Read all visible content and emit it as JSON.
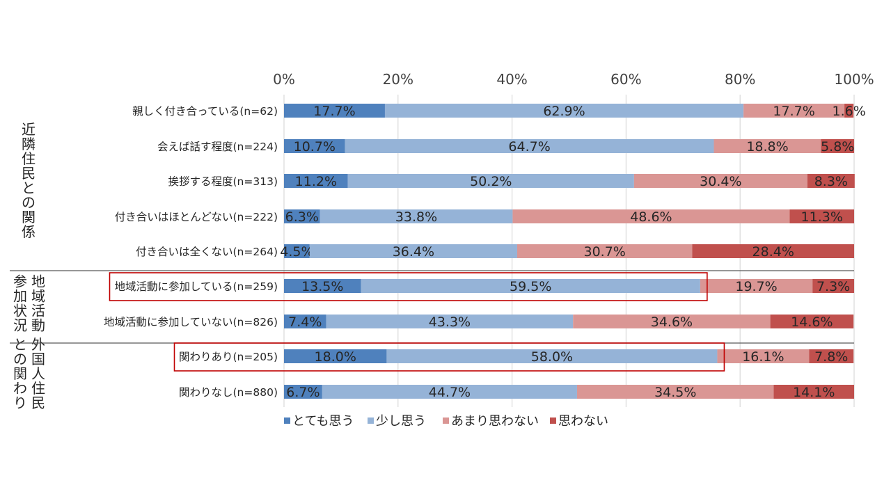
{
  "chart_data": {
    "type": "bar",
    "orientation": "horizontal",
    "stacked": "percent",
    "xlim": [
      0,
      100
    ],
    "x_ticks": [
      "0%",
      "20%",
      "40%",
      "60%",
      "80%",
      "100%"
    ],
    "grid": true,
    "legend_position": "bottom",
    "categories": [
      "親しく付き合っている(n=62)",
      "会えば話す程度(n=224)",
      "挨拶する程度(n=313)",
      "付き合いはほとんどない(n=222)",
      "付き合いは全くない(n=264)",
      "地域活動に参加している(n=259)",
      "地域活動に参加していない(n=826)",
      "関わりあり(n=205)",
      "関わりなし(n=880)"
    ],
    "series": [
      {
        "name": "とても思う",
        "color": "#4f81bd",
        "values": [
          17.7,
          10.7,
          11.2,
          6.3,
          4.5,
          13.5,
          7.4,
          18.0,
          6.7
        ],
        "labels": [
          "17.7%",
          "10.7%",
          "11.2%",
          "6.3%",
          "4.5%",
          "13.5%",
          "7.4%",
          "18.0%",
          "6.7%"
        ]
      },
      {
        "name": "少し思う",
        "color": "#95b3d7",
        "values": [
          62.9,
          64.7,
          50.2,
          33.8,
          36.4,
          59.5,
          43.3,
          58.0,
          44.7
        ],
        "labels": [
          "62.9%",
          "64.7%",
          "50.2%",
          "33.8%",
          "36.4%",
          "59.5%",
          "43.3%",
          "58.0%",
          "44.7%"
        ]
      },
      {
        "name": "あまり思わない",
        "color": "#da9694",
        "values": [
          17.7,
          18.8,
          30.4,
          48.6,
          30.7,
          19.7,
          34.6,
          16.1,
          34.5
        ],
        "labels": [
          "17.7%",
          "18.8%",
          "30.4%",
          "48.6%",
          "30.7%",
          "19.7%",
          "34.6%",
          "16.1%",
          "34.5%"
        ]
      },
      {
        "name": "思わない",
        "color": "#c0504d",
        "values": [
          1.6,
          5.8,
          8.3,
          11.3,
          28.4,
          7.3,
          14.6,
          7.8,
          14.1
        ],
        "labels": [
          "1.6%",
          "5.8%",
          "8.3%",
          "11.3%",
          "28.4%",
          "7.3%",
          "14.6%",
          "7.8%",
          "14.1%"
        ]
      }
    ],
    "groups": [
      {
        "name": "近隣住民との関係",
        "columns": [
          "近隣住民との関係"
        ],
        "first": 0,
        "last": 4
      },
      {
        "name": "参加状況地域活動",
        "columns": [
          "地域活動",
          "参加状況"
        ],
        "first": 5,
        "last": 6
      },
      {
        "name": "外国人住民との関わり",
        "columns": [
          "外国人住民",
          "との関わり"
        ],
        "first": 7,
        "last": 8
      }
    ],
    "highlighted_categories": [
      5,
      7
    ],
    "highlight_color": "#c00000"
  }
}
